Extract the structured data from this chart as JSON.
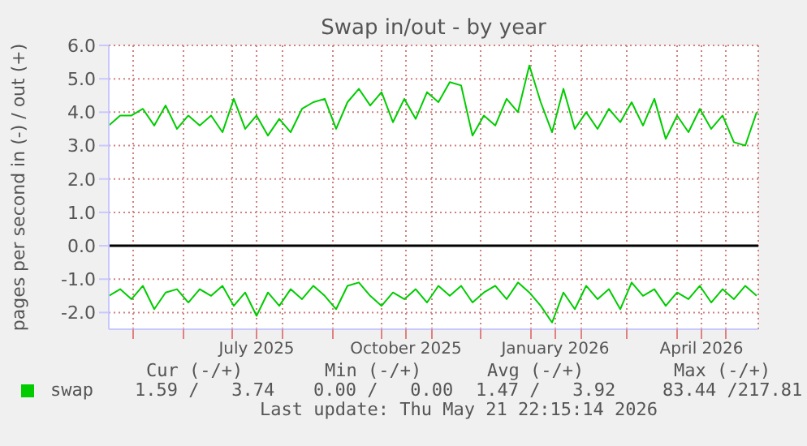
{
  "chart_data": {
    "type": "line",
    "title": "Swap in/out - by year",
    "ylabel": "pages per second in (-) / out (+)",
    "x": [
      "2025-04-16",
      "2025-04-23",
      "2025-04-30",
      "2025-05-07",
      "2025-05-14",
      "2025-05-21",
      "2025-05-28",
      "2025-06-04",
      "2025-06-11",
      "2025-06-18",
      "2025-06-25",
      "2025-07-02",
      "2025-07-09",
      "2025-07-16",
      "2025-07-23",
      "2025-07-30",
      "2025-08-06",
      "2025-08-13",
      "2025-08-20",
      "2025-08-27",
      "2025-09-03",
      "2025-09-10",
      "2025-09-17",
      "2025-09-24",
      "2025-10-01",
      "2025-10-08",
      "2025-10-15",
      "2025-10-22",
      "2025-10-29",
      "2025-11-05",
      "2025-11-12",
      "2025-11-19",
      "2025-11-26",
      "2025-12-03",
      "2025-12-10",
      "2025-12-17",
      "2025-12-24",
      "2025-12-31",
      "2026-01-07",
      "2026-01-14",
      "2026-01-21",
      "2026-01-28",
      "2026-02-04",
      "2026-02-11",
      "2026-02-18",
      "2026-02-25",
      "2026-03-04",
      "2026-03-11",
      "2026-03-18",
      "2026-03-25",
      "2026-04-01",
      "2026-04-08",
      "2026-04-15",
      "2026-04-22",
      "2026-04-29",
      "2026-05-06",
      "2026-05-13",
      "2026-05-20"
    ],
    "series": [
      {
        "name": "swap",
        "color": "#00cc00",
        "values": [
          3.6,
          3.9,
          3.9,
          4.1,
          3.6,
          4.2,
          3.5,
          3.9,
          3.6,
          3.9,
          3.4,
          4.4,
          3.5,
          3.9,
          3.3,
          3.8,
          3.4,
          4.1,
          4.3,
          4.4,
          3.5,
          4.3,
          4.7,
          4.2,
          4.6,
          3.7,
          4.4,
          3.8,
          4.6,
          4.3,
          4.9,
          4.8,
          3.3,
          3.9,
          3.6,
          4.4,
          4.0,
          5.4,
          4.3,
          3.4,
          4.7,
          3.5,
          4.0,
          3.5,
          4.1,
          3.7,
          4.3,
          3.6,
          4.4,
          3.2,
          3.9,
          3.4,
          4.1,
          3.5,
          3.9,
          3.1,
          3.0,
          4.0
        ]
      },
      {
        "color": "#00cc00",
        "values": [
          -1.5,
          -1.3,
          -1.6,
          -1.2,
          -1.9,
          -1.4,
          -1.3,
          -1.7,
          -1.3,
          -1.5,
          -1.2,
          -1.8,
          -1.4,
          -2.1,
          -1.4,
          -1.8,
          -1.3,
          -1.6,
          -1.2,
          -1.5,
          -1.9,
          -1.2,
          -1.1,
          -1.5,
          -1.8,
          -1.4,
          -1.6,
          -1.3,
          -1.7,
          -1.2,
          -1.5,
          -1.2,
          -1.7,
          -1.4,
          -1.2,
          -1.6,
          -1.1,
          -1.4,
          -1.8,
          -2.3,
          -1.4,
          -1.9,
          -1.2,
          -1.6,
          -1.3,
          -1.9,
          -1.1,
          -1.5,
          -1.3,
          -1.8,
          -1.4,
          -1.6,
          -1.2,
          -1.7,
          -1.3,
          -1.6,
          -1.2,
          -1.5
        ]
      }
    ],
    "xlim": [
      "2025-04-16",
      "2026-05-21"
    ],
    "xticks": [
      {
        "value": "2025-05-01",
        "label": null
      },
      {
        "value": "2025-06-01",
        "label": null
      },
      {
        "value": "2025-07-01",
        "label": null
      },
      {
        "value": "2025-07-16",
        "label": "July 2025"
      },
      {
        "value": "2025-08-01",
        "label": null
      },
      {
        "value": "2025-09-01",
        "label": null
      },
      {
        "value": "2025-10-01",
        "label": null
      },
      {
        "value": "2025-10-16",
        "label": "October 2025"
      },
      {
        "value": "2025-11-01",
        "label": null
      },
      {
        "value": "2025-12-01",
        "label": null
      },
      {
        "value": "2026-01-01",
        "label": null
      },
      {
        "value": "2026-01-16",
        "label": "January 2026"
      },
      {
        "value": "2026-02-01",
        "label": null
      },
      {
        "value": "2026-03-01",
        "label": null
      },
      {
        "value": "2026-04-01",
        "label": null
      },
      {
        "value": "2026-04-16",
        "label": "April 2026"
      },
      {
        "value": "2026-05-01",
        "label": null
      }
    ],
    "ylim": [
      -2.5,
      6.0
    ],
    "yticks": [
      {
        "value": -2,
        "label": "-2.0"
      },
      {
        "value": -1,
        "label": "-1.0"
      },
      {
        "value": 0,
        "label": "0.0"
      },
      {
        "value": 1,
        "label": "1.0"
      },
      {
        "value": 2,
        "label": "2.0"
      },
      {
        "value": 3,
        "label": "3.0"
      },
      {
        "value": 4,
        "label": "4.0"
      },
      {
        "value": 5,
        "label": "5.0"
      },
      {
        "value": 6,
        "label": "6.0"
      }
    ],
    "ref_lines": [
      {
        "axis": "y",
        "value": 0,
        "color": "#000000"
      }
    ],
    "grid": true,
    "legend": "bottom left",
    "marker": "none",
    "line_style": "solid",
    "annotations": [
      "Cur (-/+)",
      "Min (-/+)",
      "Avg (-/+)",
      "Max (-/+)",
      "1.59 /   3.74",
      "0.00 /   0.00",
      "1.47 /   3.92",
      "83.44 /217.81",
      "Last update: Thu May 21 22:15:14 2026"
    ]
  }
}
